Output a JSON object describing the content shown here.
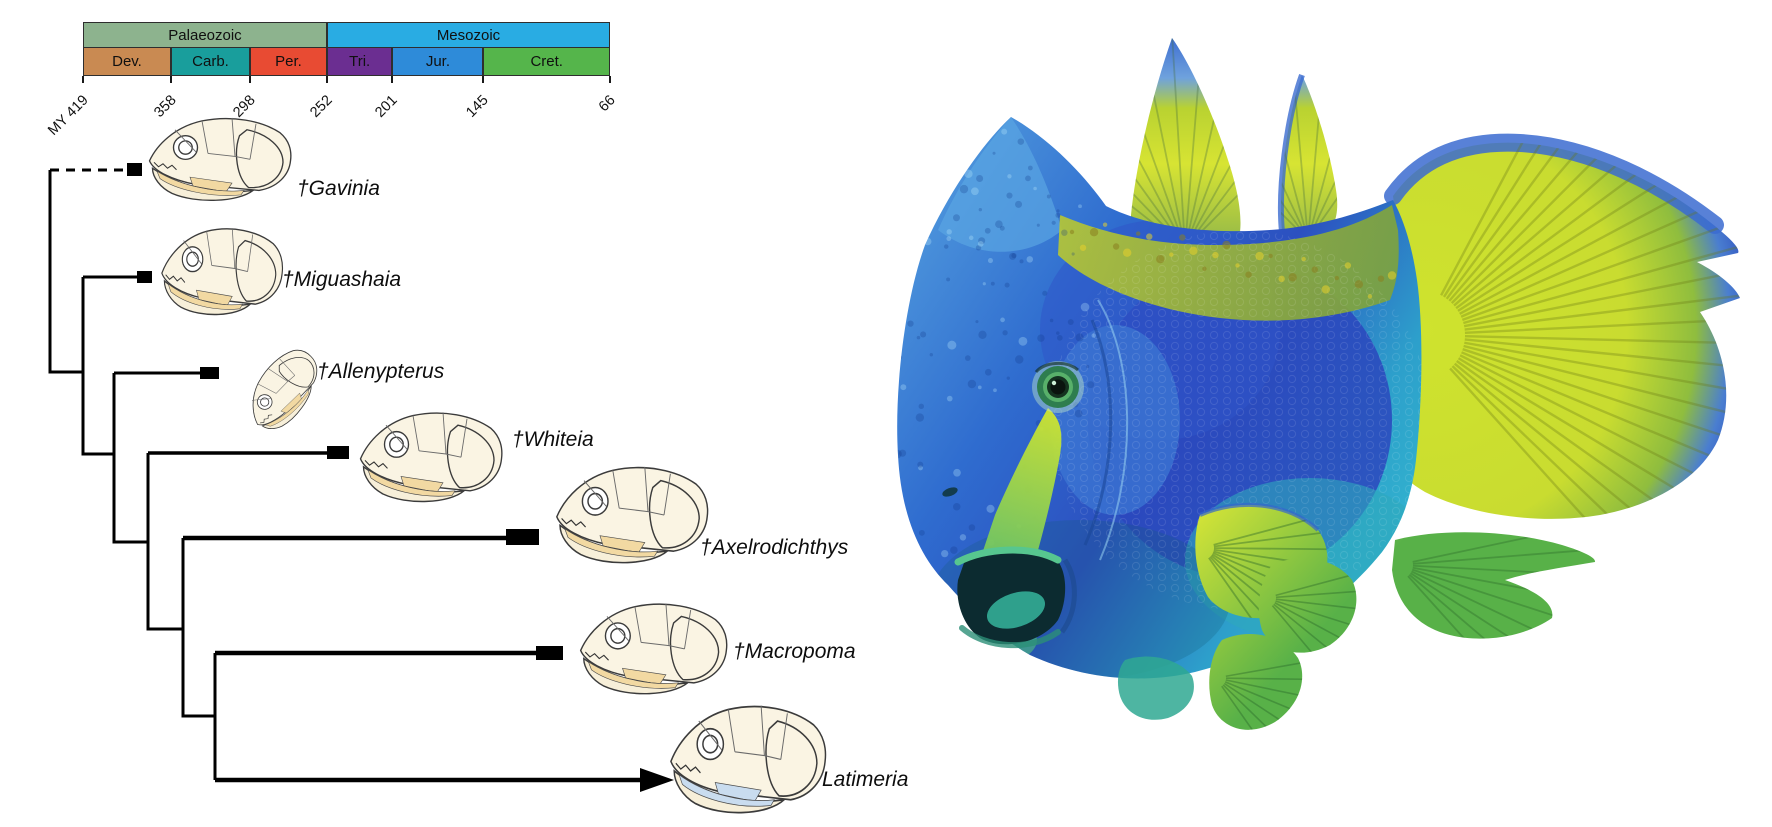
{
  "timescale": {
    "axis_prefix": "MY",
    "eras": [
      {
        "label": "Palaeozoic",
        "color": "#8DB38E",
        "span_pct": 46.3
      },
      {
        "label": "Mesozoic",
        "color": "#29ACE3",
        "span_pct": 53.7
      }
    ],
    "periods": [
      {
        "label": "Dev.",
        "color": "#C98A52",
        "span_pct": 16.7
      },
      {
        "label": "Carb.",
        "color": "#199E9C",
        "span_pct": 15.0
      },
      {
        "label": "Per.",
        "color": "#E84B33",
        "span_pct": 14.6
      },
      {
        "label": "Tri.",
        "color": "#6B2E91",
        "span_pct": 12.4
      },
      {
        "label": "Jur.",
        "color": "#2E8BD9",
        "span_pct": 17.3
      },
      {
        "label": "Cret.",
        "color": "#55B54B",
        "span_pct": 24.0
      }
    ],
    "tick_values": [
      "419",
      "358",
      "298",
      "252",
      "201",
      "145",
      "66"
    ],
    "tick_pcts": [
      0,
      16.7,
      31.7,
      46.3,
      58.6,
      75.9,
      100
    ]
  },
  "phylogeny": {
    "topology_newick": "(†Gavinia,(†Miguashaia,(†Allenypterus,(†Whiteia,(†Axelrodichthys,(†Macropoma,Latimeria))))));",
    "taxa": [
      {
        "label": "†Gavinia",
        "extinct": true,
        "branch": "dashed"
      },
      {
        "label": "†Miguashaia",
        "extinct": true,
        "branch": "solid"
      },
      {
        "label": "†Allenypterus",
        "extinct": true,
        "branch": "solid"
      },
      {
        "label": "†Whiteia",
        "extinct": true,
        "branch": "solid"
      },
      {
        "label": "†Axelrodichthys",
        "extinct": true,
        "branch": "solid"
      },
      {
        "label": "†Macropoma",
        "extinct": true,
        "branch": "solid"
      },
      {
        "label": "Latimeria",
        "extinct": false,
        "branch": "arrow-to-present"
      }
    ]
  },
  "illustration": {
    "subject": "coelacanth-life-reconstruction",
    "palette": {
      "body_blue": "#2C50C0",
      "head_blue": "#4E97DC",
      "cyan": "#35B7D8",
      "indigo_patch": "#2B47BD",
      "back_olive": "#9DB837",
      "fin_yellow": "#CFE32E",
      "fin_green": "#58B148",
      "fin_blue_edge": "#3B6BD0",
      "snout_yellow": "#CFE52F",
      "mouth_dark": "#0C2B30",
      "tongue_teal": "#2FA08C",
      "eye_green": "#58B06A"
    }
  }
}
